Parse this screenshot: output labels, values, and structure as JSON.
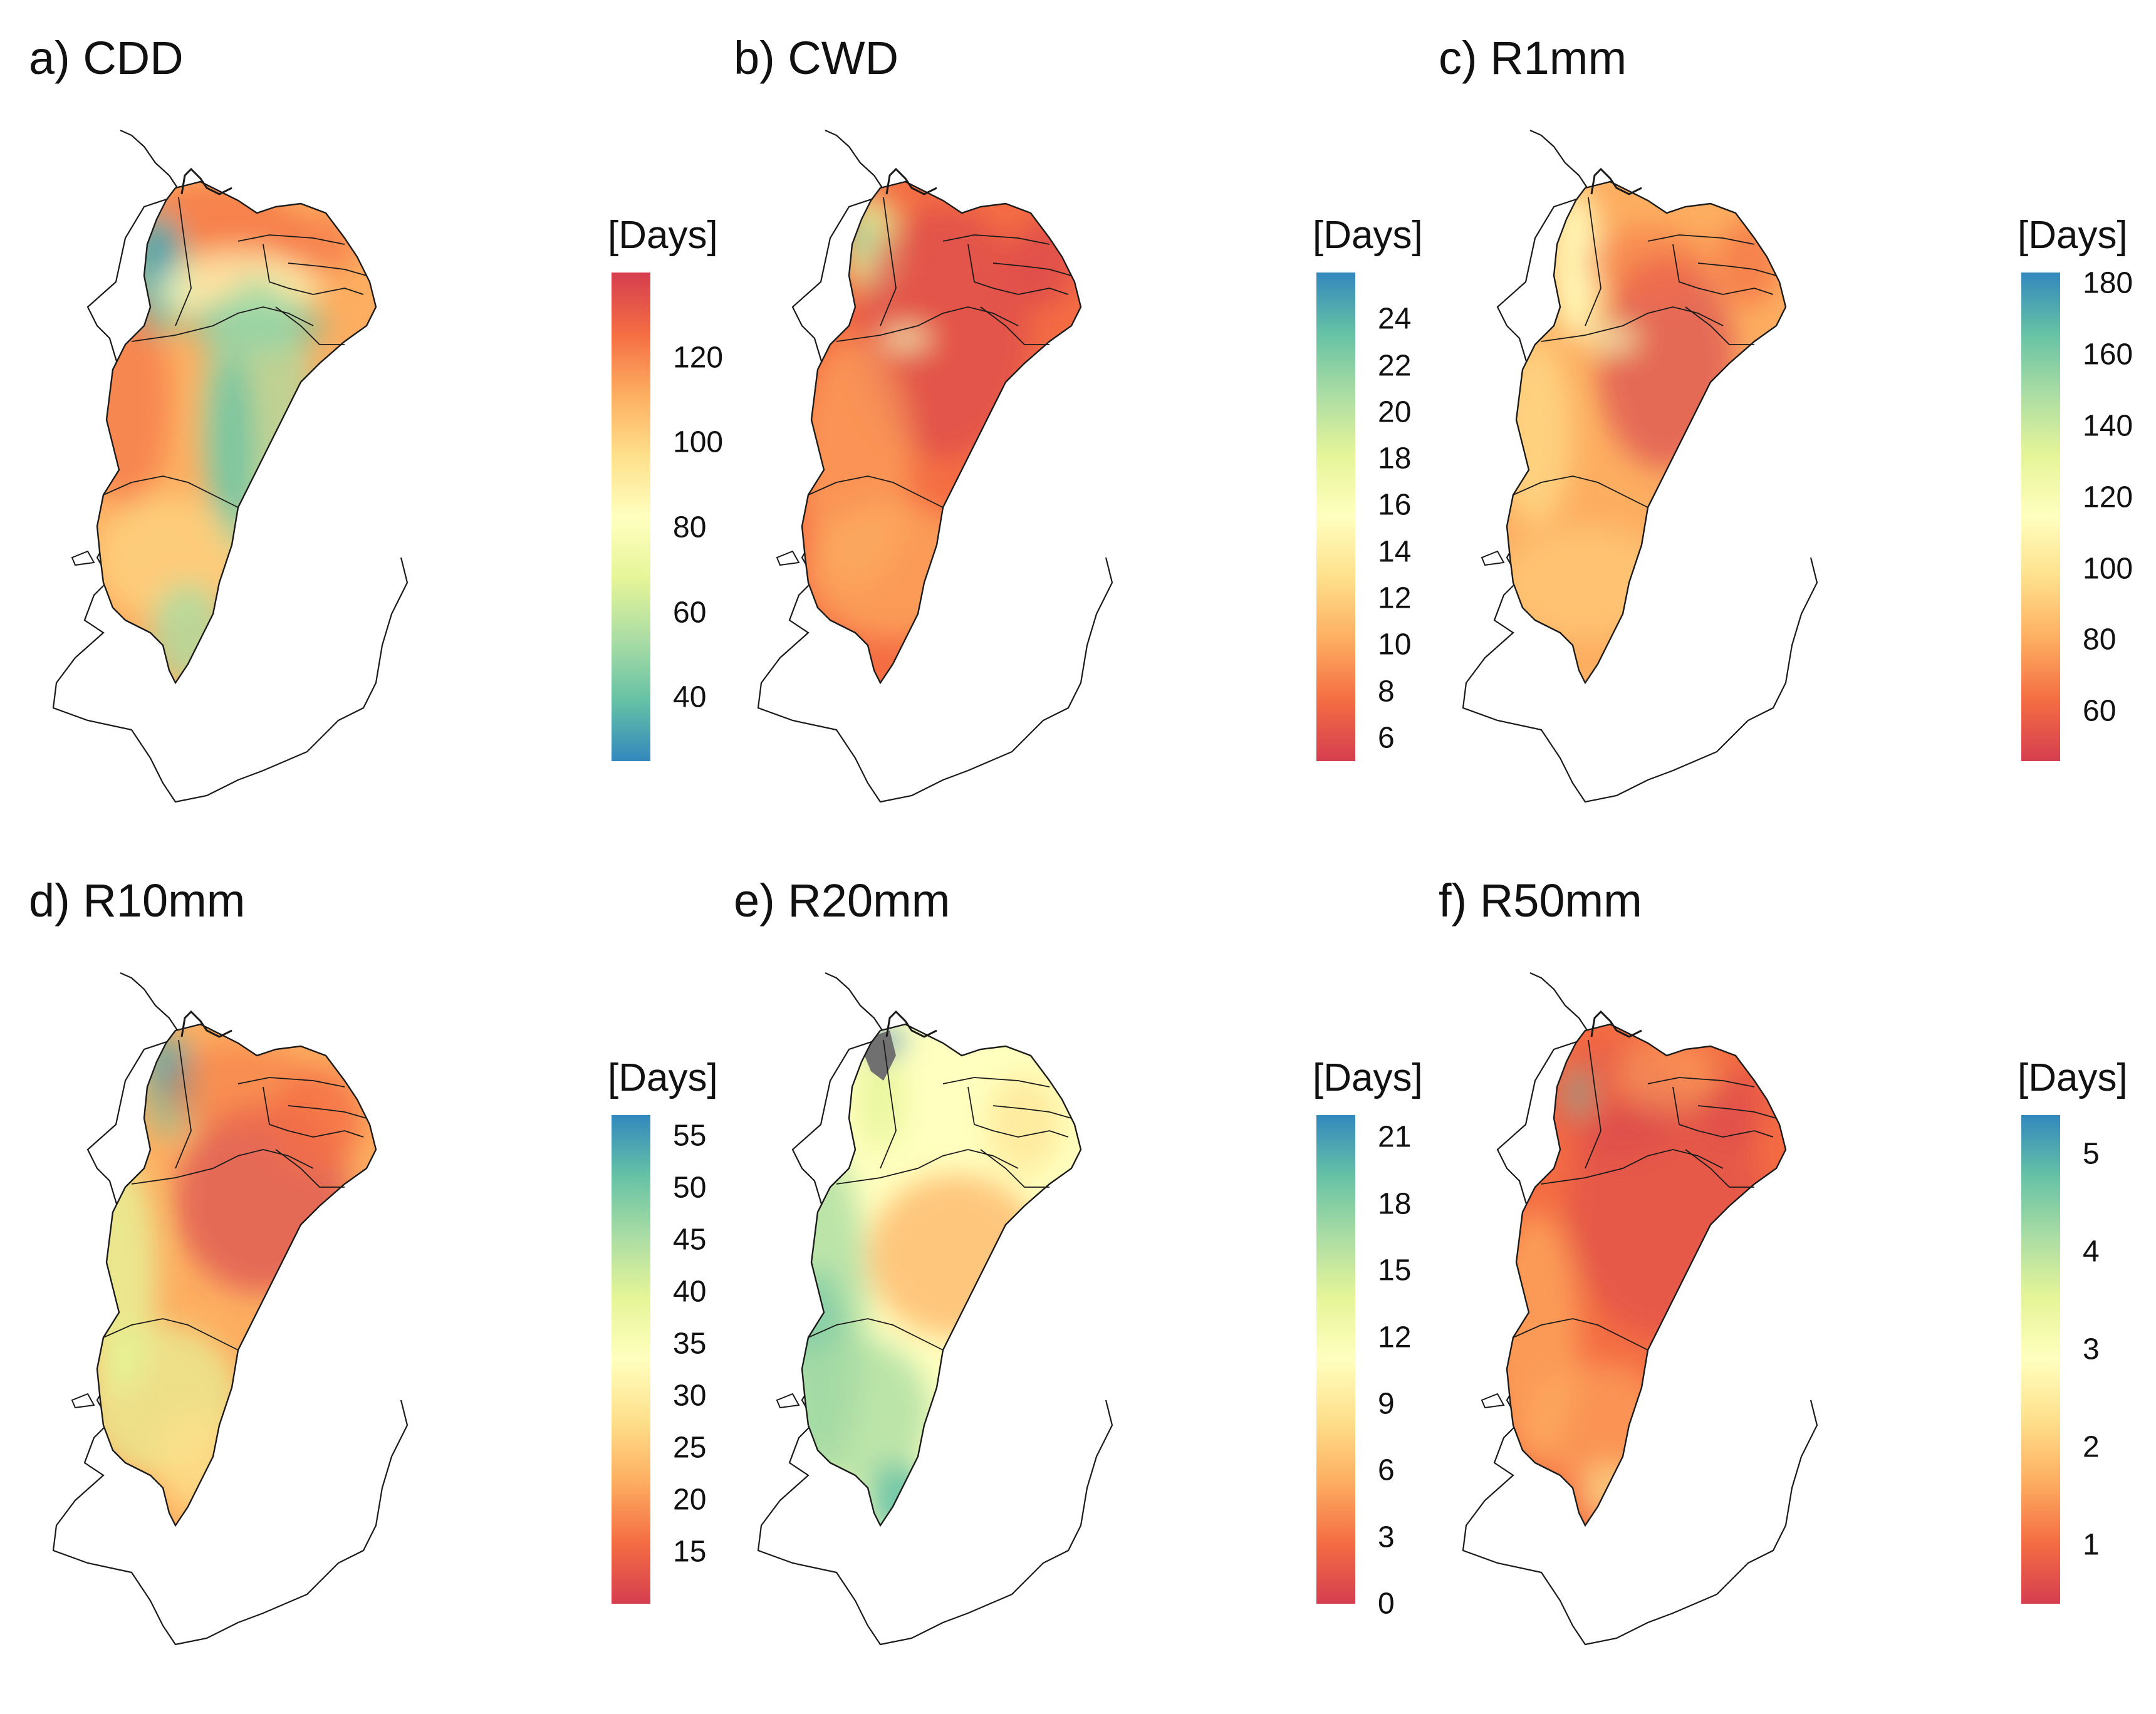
{
  "colors": {
    "red": "#d53e4f",
    "orange": "#f46d43",
    "light_orange": "#fdae61",
    "yellow": "#fee08b",
    "pale": "#ffffbf",
    "light_green": "#e6f598",
    "green": "#abdda4",
    "teal": "#66c2a5",
    "blue": "#3288bd",
    "gray": "#707070",
    "border": "#1a1a1a"
  },
  "panels": [
    {
      "title": "a) CDD",
      "unit": "[Days]",
      "ticks": [
        "40",
        "60",
        "80",
        "100",
        "120"
      ],
      "tick_values": [
        40,
        60,
        80,
        100,
        120
      ],
      "range": [
        25,
        140
      ],
      "palette": "blue-low"
    },
    {
      "title": "b) CWD",
      "unit": "[Days]",
      "ticks": [
        "6",
        "8",
        "10",
        "12",
        "14",
        "16",
        "18",
        "20",
        "22",
        "24"
      ],
      "tick_values": [
        6,
        8,
        10,
        12,
        14,
        16,
        18,
        20,
        22,
        24
      ],
      "range": [
        5,
        26
      ],
      "palette": "blue-high"
    },
    {
      "title": "c) R1mm",
      "unit": "[Days]",
      "ticks": [
        "60",
        "80",
        "100",
        "120",
        "140",
        "160",
        "180"
      ],
      "tick_values": [
        60,
        80,
        100,
        120,
        140,
        160,
        180
      ],
      "range": [
        46,
        183
      ],
      "palette": "blue-high"
    },
    {
      "title": "d) R10mm",
      "unit": "[Days]",
      "ticks": [
        "15",
        "20",
        "25",
        "30",
        "35",
        "40",
        "45",
        "50",
        "55"
      ],
      "tick_values": [
        15,
        20,
        25,
        30,
        35,
        40,
        45,
        50,
        55
      ],
      "range": [
        10,
        57
      ],
      "palette": "blue-high"
    },
    {
      "title": "e) R20mm",
      "unit": "[Days]",
      "ticks": [
        "0",
        "3",
        "6",
        "9",
        "12",
        "15",
        "18",
        "21"
      ],
      "tick_values": [
        0,
        3,
        6,
        9,
        12,
        15,
        18,
        21
      ],
      "range": [
        0,
        22
      ],
      "palette": "blue-high"
    },
    {
      "title": "f) R50mm",
      "unit": "[Days]",
      "ticks": [
        "1",
        "2",
        "3",
        "4",
        "5"
      ],
      "tick_values": [
        1,
        2,
        3,
        4,
        5
      ],
      "range": [
        0.4,
        5.4
      ],
      "palette": "blue-high"
    }
  ]
}
